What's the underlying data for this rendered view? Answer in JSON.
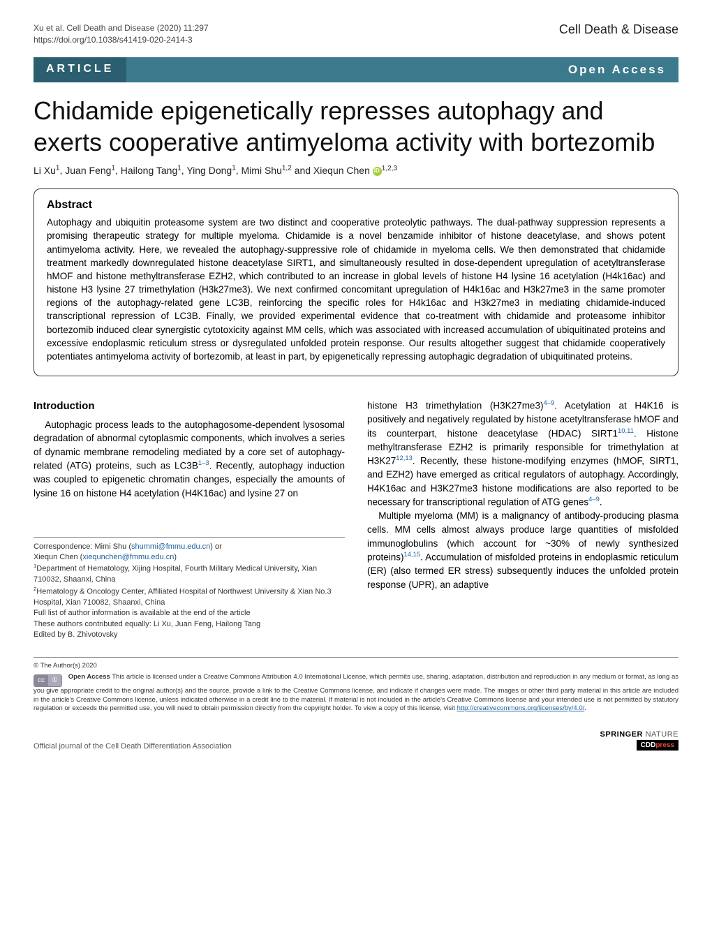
{
  "header": {
    "citation_line1": "Xu et al. Cell Death and Disease            (2020) 11:297",
    "citation_line2": "https://doi.org/10.1038/s41419-020-2414-3",
    "journal": "Cell Death & Disease"
  },
  "banner": {
    "article_tag": "ARTICLE",
    "open_access": "Open Access"
  },
  "title": "Chidamide epigenetically represses autophagy and exerts cooperative antimyeloma activity with bortezomib",
  "authors_html": "Li Xu<sup>1</sup>, Juan Feng<sup>1</sup>, Hailong Tang<sup>1</sup>, Ying Dong<sup>1</sup>, Mimi Shu<sup>1,2</sup> and Xiequn Chen",
  "authors_orcid_sup": "1,2,3",
  "abstract": {
    "heading": "Abstract",
    "text": "Autophagy and ubiquitin proteasome system are two distinct and cooperative proteolytic pathways. The dual-pathway suppression represents a promising therapeutic strategy for multiple myeloma. Chidamide is a novel benzamide inhibitor of histone deacetylase, and shows potent antimyeloma activity. Here, we revealed the autophagy-suppressive role of chidamide in myeloma cells. We then demonstrated that chidamide treatment markedly downregulated histone deacetylase SIRT1, and simultaneously resulted in dose-dependent upregulation of acetyltransferase hMOF and histone methyltransferase EZH2, which contributed to an increase in global levels of histone H4 lysine 16 acetylation (H4k16ac) and histone H3 lysine 27 trimethylation (H3k27me3). We next confirmed concomitant upregulation of H4k16ac and H3k27me3 in the same promoter regions of the autophagy-related gene LC3B, reinforcing the specific roles for H4k16ac and H3k27me3 in mediating chidamide-induced transcriptional repression of LC3B. Finally, we provided experimental evidence that co-treatment with chidamide and proteasome inhibitor bortezomib induced clear synergistic cytotoxicity against MM cells, which was associated with increased accumulation of ubiquitinated proteins and excessive endoplasmic reticulum stress or dysregulated unfolded protein response. Our results altogether suggest that chidamide cooperatively potentiates antimyeloma activity of bortezomib, at least in part, by epigenetically repressing autophagic degradation of ubiquitinated proteins."
  },
  "intro": {
    "heading": "Introduction",
    "col1": {
      "p1": "Autophagic process leads to the autophagosome-dependent lysosomal degradation of abnormal cytoplasmic components, which involves a series of dynamic membrane remodeling mediated by a core set of autophagy-related (ATG) proteins, such as LC3B<sup class=\"ref-link\">1–3</sup>. Recently, autophagy induction was coupled to epigenetic chromatin changes, especially the amounts of lysine 16 on histone H4 acetylation (H4K16ac) and lysine 27 on"
    },
    "col2": {
      "p1": "histone H3 trimethylation (H3K27me3)<sup class=\"ref-link\">4–9</sup>. Acetylation at H4K16 is positively and negatively regulated by histone acetyltransferase hMOF and its counterpart, histone deacetylase (HDAC) SIRT1<sup class=\"ref-link\">10,11</sup>. Histone methyltransferase EZH2 is primarily responsible for trimethylation at H3K27<sup class=\"ref-link\">12,13</sup>. Recently, these histone-modifying enzymes (hMOF, SIRT1, and EZH2) have emerged as critical regulators of autophagy. Accordingly, H4K16ac and H3K27me3 histone modifications are also reported to be necessary for transcriptional regulation of ATG genes<sup class=\"ref-link\">4–9</sup>.",
      "p2": "Multiple myeloma (MM) is a malignancy of antibody-producing plasma cells. MM cells almost always produce large quantities of misfolded immunoglobulins (which account for ~30% of newly synthesized proteins)<sup class=\"ref-link\">14,15</sup>. Accumulation of misfolded proteins in endoplasmic reticulum (ER) (also termed ER stress) subsequently induces the unfolded protein response (UPR), an adaptive"
    }
  },
  "correspondence": {
    "line1": "Correspondence: Mimi Shu (",
    "email1": "shummi@fmmu.edu.cn",
    "line1b": ") or",
    "line2": "Xiequn Chen (",
    "email2": "xiequnchen@fmmu.edu.cn",
    "line2b": ")",
    "aff1": "<sup>1</sup>Department of Hematology, Xijing Hospital, Fourth Military Medical University, Xian 710032, Shaanxi, China",
    "aff2": "<sup>2</sup>Hematology & Oncology Center, Affiliated Hospital of Northwest University & Xian No.3 Hospital, Xian 710082, Shaanxi, China",
    "aff3": "Full list of author information is available at the end of the article",
    "aff4": "These authors contributed equally: Li Xu, Juan Feng, Hailong Tang",
    "aff5": "Edited by B. Zhivotovsky"
  },
  "license": {
    "copyright": "© The Author(s) 2020",
    "cc_label1": "cc",
    "cc_label2": "①",
    "text": "<b>Open Access</b> This article is licensed under a Creative Commons Attribution 4.0 International License, which permits use, sharing, adaptation, distribution and reproduction in any medium or format, as long as you give appropriate credit to the original author(s) and the source, provide a link to the Creative Commons license, and indicate if changes were made. The images or other third party material in this article are included in the article's Creative Commons license, unless indicated otherwise in a credit line to the material. If material is not included in the article's Creative Commons license and your intended use is not permitted by statutory regulation or exceeds the permitted use, you will need to obtain permission directly from the copyright holder. To view a copy of this license, visit <a href=\"#\" style=\"color:#1a5f9e;\">http://creativecommons.org/licenses/by/4.0/</a>."
  },
  "footer": {
    "left": "Official journal of the Cell Death Differentiation Association",
    "springer": "SPRINGER",
    "nature": "NATURE",
    "cdd": "CDD",
    "press": "press"
  },
  "style": {
    "banner_bg": "#3a7a8c",
    "banner_tag_bg": "#2b5f6f",
    "link_color": "#1a5f9e",
    "orcid_color": "#a6ce39",
    "title_fontsize": 36,
    "body_fontsize": 13.5,
    "abstract_fontsize": 13.5
  }
}
